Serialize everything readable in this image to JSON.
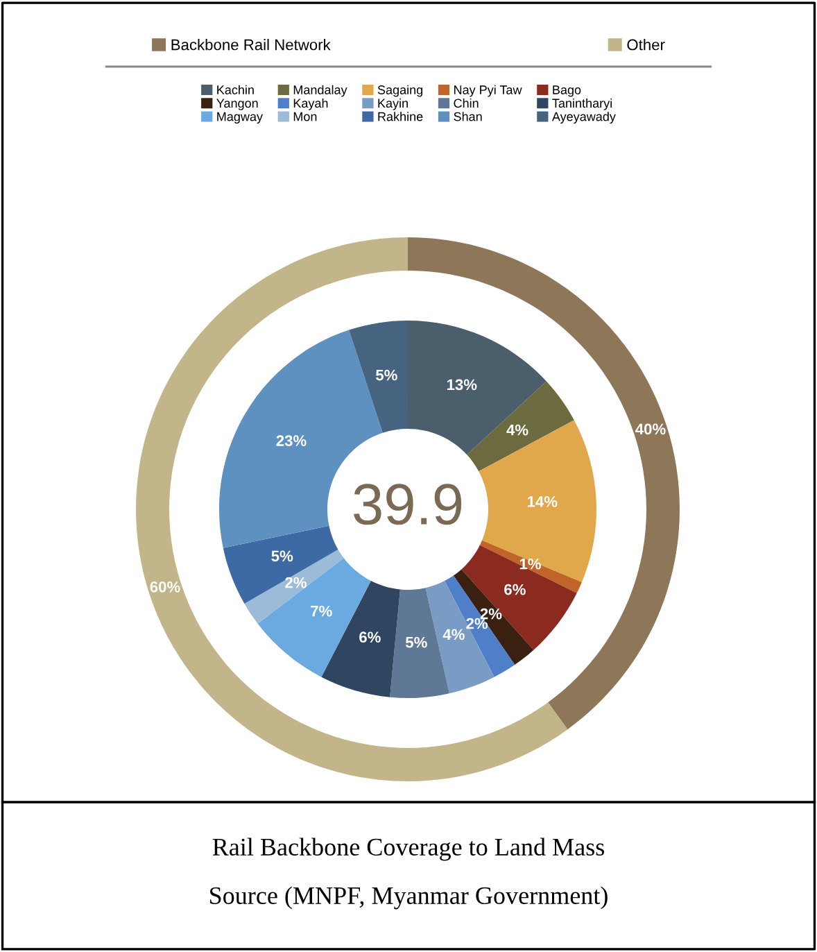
{
  "chart_data": {
    "type": "donut",
    "title": "Rail Backbone Coverage to Land Mass",
    "annotations": [
      "Source (MNPF, Myanmar Government)",
      "39.9"
    ],
    "legend": "top",
    "categories": [
      "Backbone Rail Network",
      "Other",
      "Kachin",
      "Mandalay",
      "Sagaing",
      "Nay Pyi Taw",
      "Bago",
      "Yangon",
      "Kayah",
      "Kayin",
      "Chin",
      "Tanintharyi",
      "Magway",
      "Mon",
      "Rakhine",
      "Shan",
      "Ayeyawady"
    ],
    "colors": [
      "#8e7659",
      "#c2b58a",
      "#4a5f6b",
      "#6b6b3f",
      "#e0a84a",
      "#c0642a",
      "#8b2a1e",
      "#3a2010",
      "#4f7fc8",
      "#7a9cc4",
      "#5e7895",
      "#2f4560",
      "#6aaae0",
      "#9bbbd8",
      "#3d6aa5",
      "#5e90c0",
      "#466480"
    ],
    "series": [
      {
        "values": [
          40,
          60,
          null,
          null,
          null,
          null,
          null,
          null,
          null,
          null,
          null,
          null,
          null,
          null,
          null,
          null,
          null
        ],
        "value_labels": [
          "40%",
          "60%",
          null,
          null,
          null,
          null,
          null,
          null,
          null,
          null,
          null,
          null,
          null,
          null,
          null,
          null,
          null
        ]
      },
      {
        "values": [
          null,
          null,
          13,
          4,
          14,
          1,
          6,
          2,
          2,
          4,
          5,
          6,
          7,
          2,
          5,
          23,
          5
        ],
        "value_labels": [
          null,
          null,
          "13%",
          "4%",
          "14%",
          "1%",
          "6%",
          "2%",
          "2%",
          "4%",
          "5%",
          "6%",
          "7%",
          "2%",
          "5%",
          "23%",
          "5%"
        ]
      }
    ]
  }
}
